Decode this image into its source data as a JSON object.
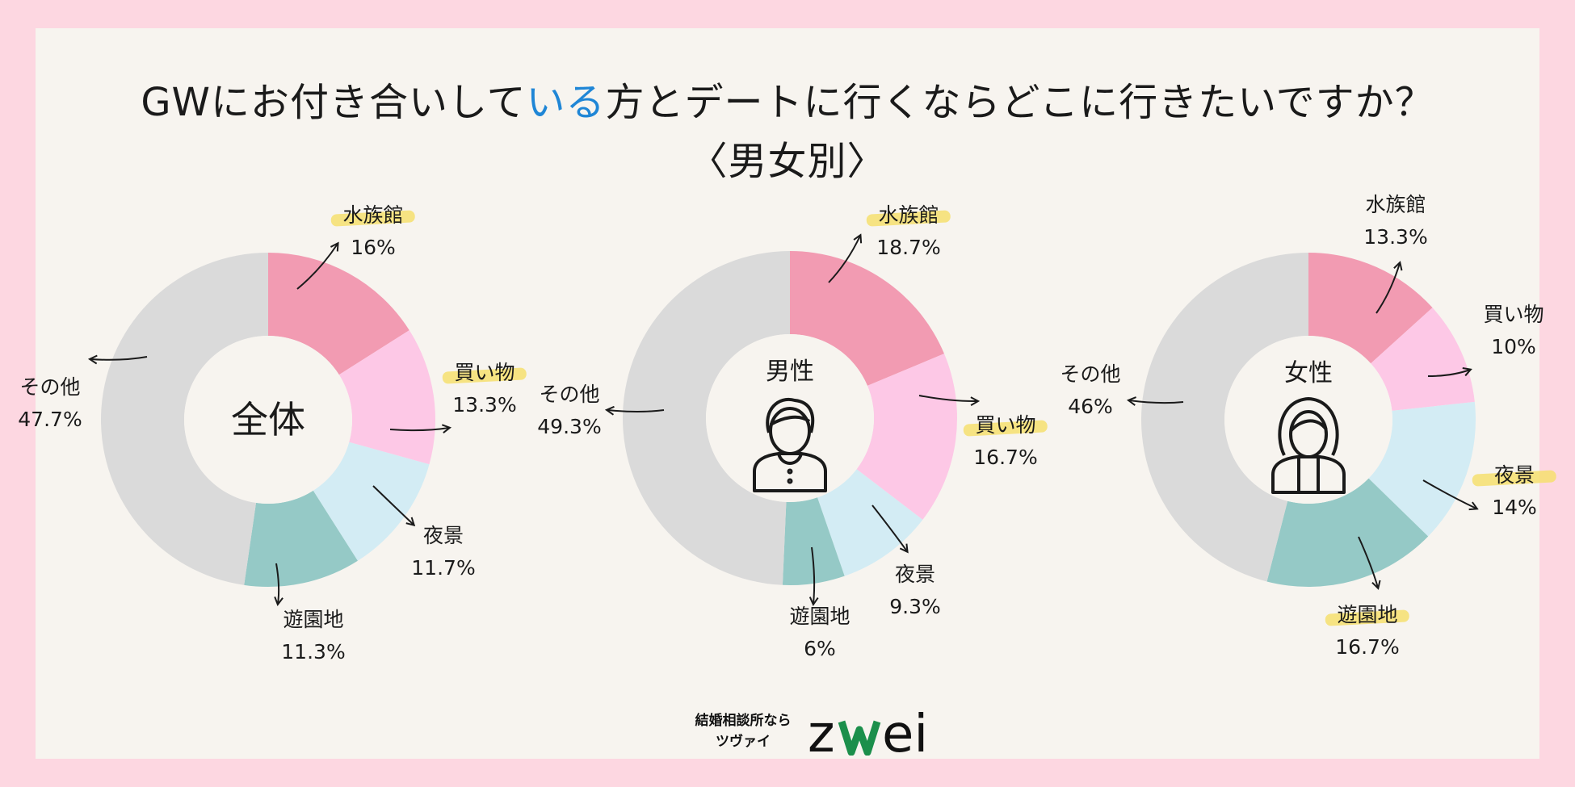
{
  "title": {
    "line1_pre": "GWにお付き合いして",
    "line1_highlight": "いる",
    "line1_post": "方とデートに行くならどこに行きたいですか？",
    "line2": "〈男女別〉"
  },
  "colors": {
    "background": "#fdd7e1",
    "panel": "#f7f4ef",
    "title_highlight": "#1f86d6",
    "label_highlight": "#f6df6f",
    "slices": [
      "#f29bb2",
      "#fdc8e6",
      "#d3ecf4",
      "#95c9c6",
      "#dadada"
    ]
  },
  "chart_data": [
    {
      "type": "pie",
      "variant": "donut",
      "center_label": "全体",
      "center_icon": "",
      "categories": [
        "水族館",
        "買い物",
        "夜景",
        "遊園地",
        "その他"
      ],
      "values": [
        16,
        13.3,
        11.7,
        11.3,
        47.7
      ],
      "value_labels": [
        "16%",
        "13.3%",
        "11.7%",
        "11.3%",
        "47.7%"
      ],
      "highlighted": [
        "水族館",
        "買い物"
      ]
    },
    {
      "type": "pie",
      "variant": "donut",
      "center_label": "男性",
      "center_icon": "man-icon",
      "categories": [
        "水族館",
        "買い物",
        "夜景",
        "遊園地",
        "その他"
      ],
      "values": [
        18.7,
        16.7,
        9.3,
        6,
        49.3
      ],
      "value_labels": [
        "18.7%",
        "16.7%",
        "9.3%",
        "6%",
        "49.3%"
      ],
      "highlighted": [
        "水族館",
        "買い物"
      ]
    },
    {
      "type": "pie",
      "variant": "donut",
      "center_label": "女性",
      "center_icon": "woman-icon",
      "categories": [
        "水族館",
        "買い物",
        "夜景",
        "遊園地",
        "その他"
      ],
      "values": [
        13.3,
        10,
        14,
        16.7,
        46
      ],
      "value_labels": [
        "13.3%",
        "10%",
        "14%",
        "16.7%",
        "46%"
      ],
      "highlighted": [
        "夜景",
        "遊園地"
      ]
    }
  ],
  "logo": {
    "tagline_line1": "結婚相談所なら",
    "tagline_line2": "ツヴァイ",
    "brand": "zwei"
  }
}
